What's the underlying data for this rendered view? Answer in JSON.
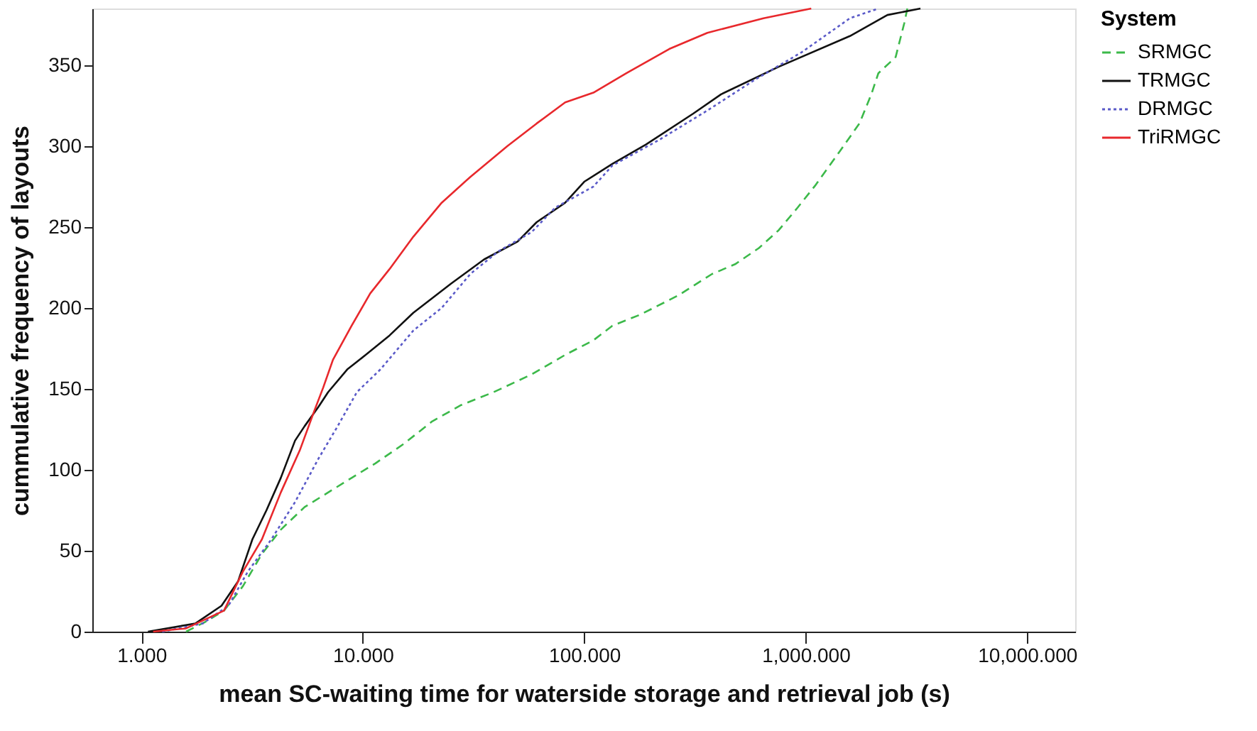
{
  "chart_data": {
    "type": "line",
    "xlabel": "mean SC-waiting time for waterside storage and retrieval job (s)",
    "ylabel": "cummulative frequency of layouts",
    "legend_title": "System",
    "legend": "top right",
    "grid": false,
    "log": "x",
    "xlim": [
      0.6,
      16500
    ],
    "xticks": [
      {
        "value": 1,
        "label": "1.000"
      },
      {
        "value": 10,
        "label": "10.000"
      },
      {
        "value": 100,
        "label": "100.000"
      },
      {
        "value": 1000,
        "label": "1,000.000"
      },
      {
        "value": 10000,
        "label": "10,000.000"
      }
    ],
    "ylim": [
      0,
      385
    ],
    "yticks": [
      0,
      50,
      100,
      150,
      200,
      250,
      300,
      350
    ],
    "series": [
      {
        "name": "SRMGC",
        "color": "#3cb94a",
        "line_style": "dashed",
        "x": [
          1.59,
          1.94,
          2.36,
          2.87,
          3.5,
          4.26,
          5.46,
          6.97,
          8.9,
          11.4,
          15.3,
          20.6,
          27.8,
          39,
          58,
          82,
          110,
          134,
          180,
          268,
          378,
          480,
          615,
          755,
          920,
          1110,
          1430,
          1750,
          1980,
          2130,
          2550,
          2790,
          2880
        ],
        "values": [
          0,
          6,
          13,
          28,
          48,
          63,
          77,
          86,
          95,
          104,
          116,
          130,
          140,
          148,
          159,
          171,
          180,
          189,
          196,
          208,
          221,
          227,
          237,
          248,
          262,
          276,
          297,
          314,
          332,
          345,
          355,
          376,
          385
        ]
      },
      {
        "name": "TRMGC",
        "color": "#111111",
        "line_style": "solid",
        "x": [
          1.07,
          1.75,
          2.3,
          2.73,
          3.17,
          3.67,
          4.26,
          4.94,
          5.46,
          6.31,
          6.97,
          8.5,
          10.3,
          13.2,
          16.9,
          25,
          35.3,
          50,
          61,
          82,
          100,
          134,
          190,
          310,
          415,
          755,
          1585,
          2340,
          3300
        ],
        "values": [
          0,
          5,
          16,
          31,
          57,
          75,
          95,
          118,
          127,
          139,
          148,
          162,
          171,
          183,
          197,
          215,
          230,
          241,
          253,
          265,
          278,
          289,
          301,
          320,
          332,
          349,
          368,
          381,
          385
        ]
      },
      {
        "name": "DRMGC",
        "color": "#5a5ac8",
        "line_style": "dotted",
        "x": [
          1.24,
          1.89,
          2.47,
          3.02,
          3.86,
          4.94,
          6.31,
          7.7,
          9.4,
          12,
          16.9,
          22.7,
          30.6,
          41,
          58,
          74,
          110,
          134,
          219,
          360,
          590,
          960,
          1585,
          2130
        ],
        "values": [
          0,
          5,
          16,
          37,
          57,
          80,
          107,
          127,
          148,
          162,
          186,
          200,
          221,
          235,
          247,
          262,
          275,
          288,
          304,
          322,
          341,
          358,
          379,
          385
        ]
      },
      {
        "name": "TriRMGC",
        "color": "#e8282c",
        "line_style": "solid",
        "x": [
          1.13,
          1.59,
          2.36,
          2.87,
          3.5,
          4.26,
          5.19,
          6.02,
          6.63,
          7.33,
          8.9,
          10.8,
          13.2,
          16.9,
          22.7,
          30.6,
          45,
          61,
          82,
          110,
          155,
          242,
          360,
          645,
          1060
        ],
        "values": [
          0,
          2,
          13,
          37,
          57,
          86,
          112,
          136,
          151,
          168,
          189,
          209,
          224,
          244,
          265,
          281,
          300,
          314,
          327,
          333,
          345,
          360,
          370,
          379,
          385
        ]
      }
    ]
  }
}
